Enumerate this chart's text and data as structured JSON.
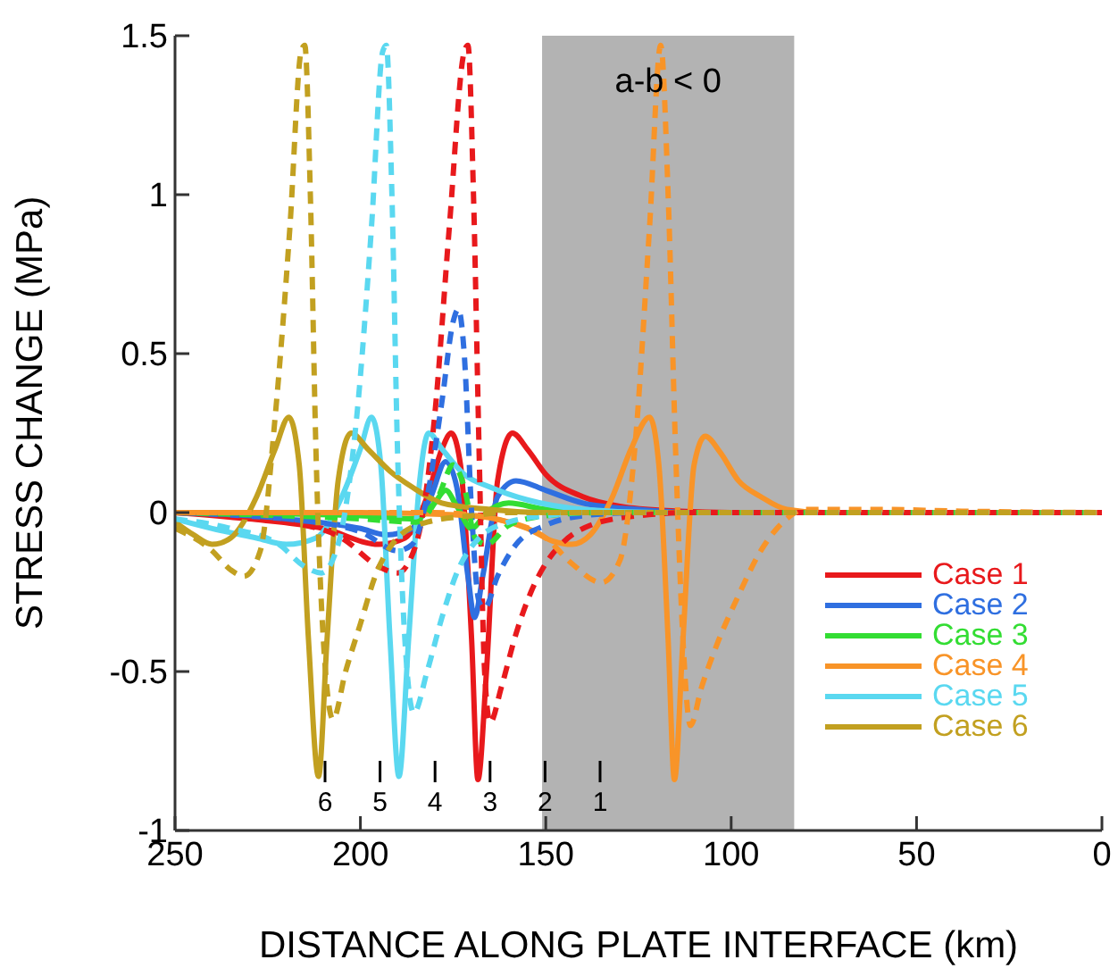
{
  "chart_data": {
    "type": "line",
    "xlabel": "DISTANCE ALONG PLATE INTERFACE (km)",
    "ylabel": "STRESS CHANGE (MPa)",
    "xlim": [
      250,
      0
    ],
    "xticks": [
      250,
      200,
      150,
      100,
      50,
      0
    ],
    "ylim": [
      -1,
      1.5
    ],
    "yticks": [
      -1,
      -0.5,
      0,
      0.5,
      1,
      1.5
    ],
    "grid": false,
    "legend": "bottom right",
    "line_style": "solid",
    "bands": [
      {
        "axis": "x",
        "from": 151,
        "to": 83,
        "color": "#b3b3b3",
        "label": "a-b < 0"
      }
    ],
    "annotations": [
      "6",
      "5",
      "4",
      "3",
      "2",
      "1"
    ],
    "series": [
      {
        "name": "Case 1",
        "color": "#e8191c",
        "x": [
          250,
          230,
          210,
          195,
          188,
          182,
          178,
          175.5,
          173,
          170,
          168.3,
          166,
          163,
          159,
          155,
          150,
          140,
          130,
          115,
          100,
          0
        ],
        "values": [
          0,
          -0.02,
          -0.05,
          -0.1,
          -0.08,
          0.05,
          0.2,
          0.25,
          0.15,
          -0.4,
          -0.84,
          -0.5,
          0.1,
          0.25,
          0.2,
          0.12,
          0.05,
          0.02,
          0.005,
          0,
          0
        ]
      },
      {
        "name": "Case 2",
        "color": "#2f6fe0",
        "x": [
          250,
          220,
          200,
          193,
          186,
          181,
          177,
          174,
          171,
          169.2,
          167,
          163,
          158,
          150,
          140,
          125,
          110,
          0
        ],
        "values": [
          0,
          -0.02,
          -0.05,
          -0.07,
          -0.05,
          0.05,
          0.16,
          0.08,
          -0.2,
          -0.33,
          -0.2,
          0.05,
          0.1,
          0.07,
          0.03,
          0.01,
          0,
          0
        ]
      },
      {
        "name": "Case 3",
        "color": "#33dd33",
        "x": [
          250,
          200,
          185,
          180,
          177,
          174,
          170,
          166,
          160,
          150,
          130,
          0
        ],
        "values": [
          0,
          -0.01,
          -0.02,
          0.03,
          0.07,
          0.02,
          -0.05,
          0,
          0.03,
          0.01,
          0,
          0
        ]
      },
      {
        "name": "Case 4",
        "color": "#f89428",
        "x": [
          250,
          200,
          170,
          155,
          148,
          143,
          138,
          132,
          127,
          122,
          119.5,
          117,
          115.3,
          113,
          110,
          107,
          103,
          98,
          92,
          85,
          75,
          0
        ],
        "values": [
          0,
          0,
          -0.01,
          -0.05,
          -0.09,
          -0.1,
          -0.07,
          0.05,
          0.2,
          0.3,
          0.15,
          -0.4,
          -0.84,
          -0.4,
          0.15,
          0.24,
          0.19,
          0.1,
          0.05,
          0.01,
          0,
          0
        ]
      },
      {
        "name": "Case 5",
        "color": "#5ad8f0",
        "x": [
          250,
          240,
          228,
          220,
          212,
          205,
          200,
          197,
          194.5,
          192,
          189.6,
          187,
          184,
          181.6,
          178,
          172,
          165,
          155,
          140,
          120,
          0
        ],
        "values": [
          -0.02,
          -0.05,
          -0.08,
          -0.1,
          -0.08,
          0.05,
          0.2,
          0.3,
          0.15,
          -0.4,
          -0.83,
          -0.4,
          0.1,
          0.25,
          0.2,
          0.12,
          0.08,
          0.04,
          0.01,
          0,
          0
        ]
      },
      {
        "name": "Case 6",
        "color": "#c2a020",
        "x": [
          250,
          245,
          240,
          235,
          228,
          223,
          219.3,
          216.5,
          214,
          211.3,
          209,
          206,
          202.5,
          198,
          192,
          186,
          178,
          165,
          150,
          0
        ],
        "values": [
          -0.03,
          -0.07,
          -0.1,
          -0.08,
          0.05,
          0.2,
          0.3,
          0.15,
          -0.4,
          -0.83,
          -0.4,
          0.1,
          0.25,
          0.2,
          0.13,
          0.08,
          0.03,
          0.01,
          0,
          0
        ]
      },
      {
        "color": "#e8191c",
        "line_style": "dashed",
        "x": [
          250,
          220,
          205,
          195,
          190,
          185,
          180,
          176,
          172,
          171,
          169.5,
          168,
          166.5,
          165,
          162,
          158,
          154,
          150,
          145,
          138,
          125,
          110,
          0
        ],
        "values": [
          0,
          -0.03,
          -0.08,
          -0.17,
          -0.19,
          -0.1,
          0.3,
          0.9,
          1.45,
          1.47,
          1,
          0.2,
          -0.5,
          -0.66,
          -0.55,
          -0.38,
          -0.25,
          -0.16,
          -0.09,
          -0.04,
          -0.01,
          0,
          0
        ]
      },
      {
        "color": "#2f6fe0",
        "line_style": "dashed",
        "x": [
          250,
          220,
          200,
          190,
          186,
          182,
          178,
          175,
          173.6,
          172,
          170,
          168,
          166.5,
          163,
          158,
          150,
          140,
          125,
          0
        ],
        "values": [
          0,
          -0.02,
          -0.06,
          -0.12,
          -0.1,
          0.05,
          0.35,
          0.6,
          0.64,
          0.5,
          0,
          -0.28,
          -0.3,
          -0.2,
          -0.1,
          -0.04,
          -0.01,
          0,
          0
        ]
      },
      {
        "color": "#33dd33",
        "line_style": "dashed",
        "x": [
          250,
          200,
          185,
          179,
          175,
          172,
          169,
          166,
          160,
          150,
          135,
          0
        ],
        "values": [
          0,
          -0.02,
          -0.03,
          0.05,
          0.15,
          0.08,
          -0.08,
          -0.1,
          -0.04,
          -0.01,
          0,
          0
        ]
      },
      {
        "color": "#f89428",
        "line_style": "dashed",
        "x": [
          250,
          180,
          160,
          150,
          143,
          135,
          130,
          126,
          122,
          119,
          117,
          115,
          113,
          111,
          108,
          104,
          98,
          92,
          86,
          80,
          60,
          40,
          0
        ],
        "values": [
          0,
          0,
          -0.03,
          -0.08,
          -0.16,
          -0.22,
          -0.15,
          0.2,
          0.9,
          1.47,
          1,
          0.2,
          -0.4,
          -0.67,
          -0.55,
          -0.42,
          -0.26,
          -0.12,
          -0.03,
          0.01,
          0.01,
          0.005,
          0
        ]
      },
      {
        "color": "#5ad8f0",
        "line_style": "dashed",
        "x": [
          250,
          235,
          222,
          215,
          210.5,
          206,
          201,
          197,
          194,
          193,
          191.5,
          190,
          188,
          185.6,
          182,
          178,
          174,
          168,
          160,
          150,
          140,
          0
        ],
        "values": [
          -0.02,
          -0.05,
          -0.1,
          -0.17,
          -0.19,
          -0.1,
          0.3,
          0.9,
          1.45,
          1.47,
          1,
          0.2,
          -0.4,
          -0.63,
          -0.5,
          -0.33,
          -0.19,
          -0.08,
          -0.03,
          -0.01,
          0,
          0
        ]
      },
      {
        "color": "#c2a020",
        "line_style": "dashed",
        "x": [
          250,
          240,
          235,
          231.4,
          227,
          223,
          219,
          216,
          215,
          213.5,
          212,
          210,
          207.4,
          204,
          200,
          196,
          190,
          182,
          170,
          160,
          0
        ],
        "values": [
          -0.05,
          -0.12,
          -0.18,
          -0.2,
          -0.12,
          0.3,
          0.9,
          1.45,
          1.47,
          1,
          0.2,
          -0.4,
          -0.65,
          -0.5,
          -0.35,
          -0.2,
          -0.08,
          -0.03,
          -0.01,
          0,
          0
        ]
      }
    ]
  }
}
